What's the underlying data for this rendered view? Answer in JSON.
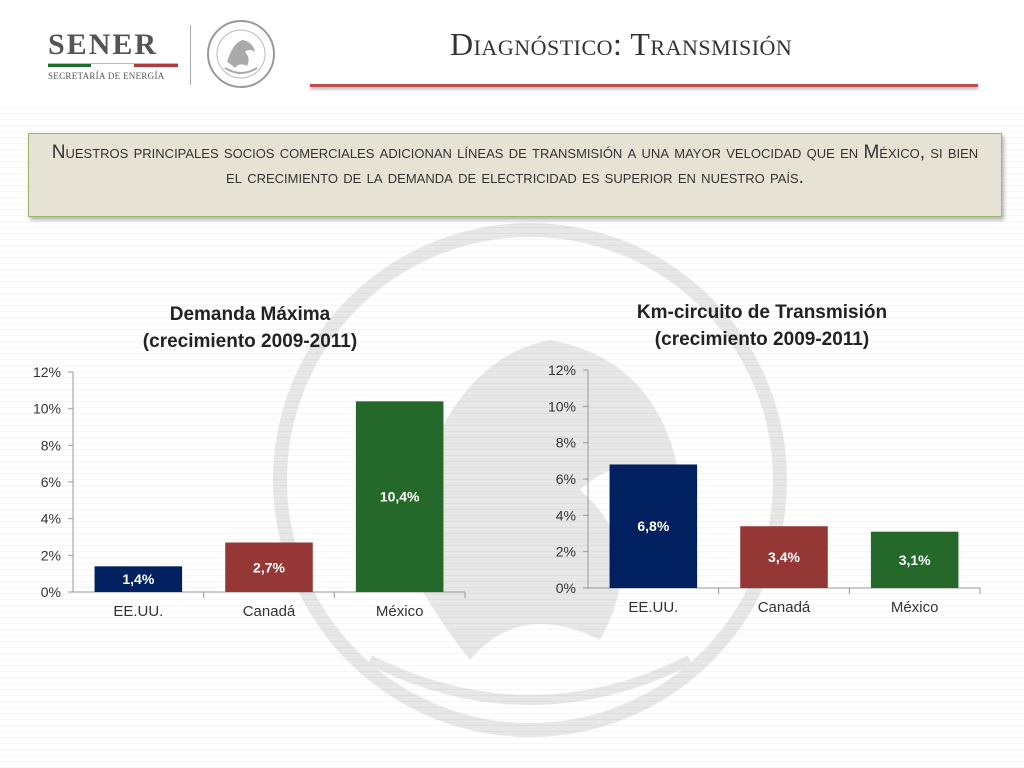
{
  "header": {
    "logo_name": "SENER",
    "logo_subtitle": "SECRETARÍA DE ENERGÍA",
    "seal_icon": "mexican-coat-of-arms-seal",
    "title": "Diagnóstico: Transmisión"
  },
  "callout": {
    "text": "Nuestros principales socios comerciales adicionan líneas de transmisión a una mayor velocidad que en México, si bien el crecimiento de la demanda de electricidad es superior en nuestro país."
  },
  "colors": {
    "series": [
      "#002060",
      "#953735",
      "#25692a"
    ],
    "title_rule": "#c0504d"
  },
  "chart_data": [
    {
      "type": "bar",
      "title_lines": [
        "Demanda Máxima",
        "(crecimiento 2009-2011)"
      ],
      "categories": [
        "EE.UU.",
        "Canadá",
        "México"
      ],
      "values": [
        1.4,
        2.7,
        10.4
      ],
      "data_labels": [
        "1,4%",
        "2,7%",
        "10,4%"
      ],
      "yticks": [
        "0%",
        "2%",
        "4%",
        "6%",
        "8%",
        "10%",
        "12%"
      ],
      "ylim": [
        0,
        12
      ],
      "grid": false,
      "legend": "none"
    },
    {
      "type": "bar",
      "title_lines": [
        "Km-circuito de Transmisión",
        "(crecimiento 2009-2011)"
      ],
      "categories": [
        "EE.UU.",
        "Canadá",
        "México"
      ],
      "values": [
        6.8,
        3.4,
        3.1
      ],
      "data_labels": [
        "6,8%",
        "3,4%",
        "3,1%"
      ],
      "yticks": [
        "0%",
        "2%",
        "4%",
        "6%",
        "8%",
        "10%",
        "12%"
      ],
      "ylim": [
        0,
        12
      ],
      "grid": false,
      "legend": "none"
    }
  ]
}
